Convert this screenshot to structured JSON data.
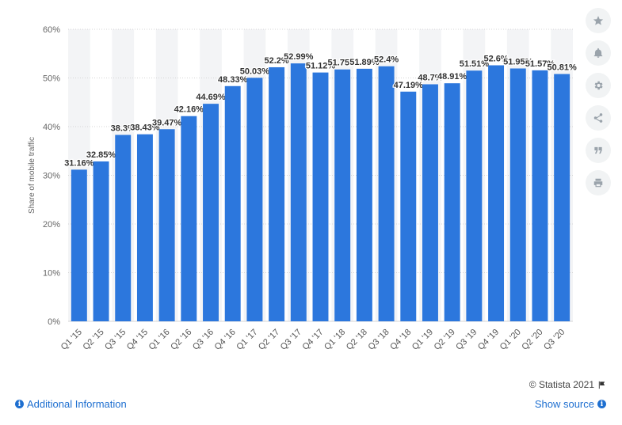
{
  "chart_data": {
    "type": "bar",
    "ylabel": "Share of mobile traffic",
    "ylim": [
      0,
      60
    ],
    "yticks": [
      "0%",
      "10%",
      "20%",
      "30%",
      "40%",
      "50%",
      "60%"
    ],
    "ytick_values": [
      0,
      10,
      20,
      30,
      40,
      50,
      60
    ],
    "categories": [
      "Q1 '15",
      "Q2 '15",
      "Q3 '15",
      "Q4 '15",
      "Q1 '16",
      "Q2 '16",
      "Q3 '16",
      "Q4 '16",
      "Q1 '17",
      "Q2 '17",
      "Q3 '17",
      "Q4 '17",
      "Q1 '18",
      "Q2 '18",
      "Q3 '18",
      "Q4 '18",
      "Q1 '19",
      "Q2 '19",
      "Q3 '19",
      "Q4 '19",
      "Q1 '20",
      "Q2 '20",
      "Q3 '20"
    ],
    "values": [
      31.16,
      32.85,
      38.3,
      38.43,
      39.47,
      42.16,
      44.69,
      48.33,
      50.03,
      52.2,
      52.99,
      51.12,
      51.75,
      51.89,
      52.4,
      47.19,
      48.7,
      48.91,
      51.51,
      52.6,
      51.95,
      51.57,
      50.81
    ],
    "labels": [
      "31.16%",
      "32.85%",
      "38.3%",
      "38.43%",
      "39.47%",
      "42.16%",
      "44.69%",
      "48.33%",
      "50.03%",
      "52.2%",
      "52.99%",
      "51.12%",
      "51.75%",
      "51.89%",
      "52.4%",
      "47.19%",
      "48.7%",
      "48.91%",
      "51.51%",
      "52.6%",
      "51.95%",
      "51.57%",
      "50.81%"
    ],
    "bar_color": "#2c77dd",
    "grid": true
  },
  "toolbar": {
    "icons": [
      "star-icon",
      "bell-icon",
      "gear-icon",
      "share-icon",
      "quote-icon",
      "print-icon"
    ]
  },
  "footer": {
    "additional_info": "Additional Information",
    "show_source": "Show source",
    "copyright": "© Statista 2021"
  },
  "colors": {
    "accent": "#1e6fd0",
    "bar": "#2c77dd"
  }
}
